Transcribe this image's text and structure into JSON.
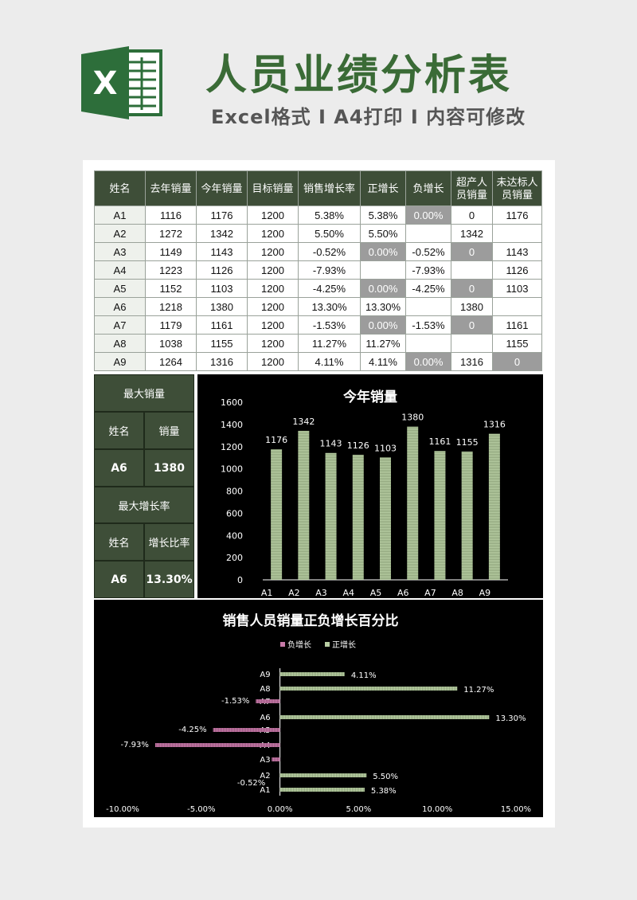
{
  "header": {
    "logo_letter": "X",
    "title": "人员业绩分析表",
    "subtitle": "Excel格式 I A4打印 I 内容可修改"
  },
  "table": {
    "headers": [
      "姓名",
      "去年销量",
      "今年销量",
      "目标销量",
      "销售增长率",
      "正增长",
      "负增长",
      "超产人员销量",
      "未达标人员销量"
    ],
    "rows": [
      {
        "name": "A1",
        "last": "1116",
        "this": "1176",
        "target": "1200",
        "rate": "5.38%",
        "pos": "5.38%",
        "neg": "0.00%",
        "over": "0",
        "under": "1176"
      },
      {
        "name": "A2",
        "last": "1272",
        "this": "1342",
        "target": "1200",
        "rate": "5.50%",
        "pos": "5.50%",
        "neg": "",
        "over": "1342",
        "under": ""
      },
      {
        "name": "A3",
        "last": "1149",
        "this": "1143",
        "target": "1200",
        "rate": "-0.52%",
        "pos": "0.00%",
        "neg": "-0.52%",
        "over": "0",
        "under": "1143"
      },
      {
        "name": "A4",
        "last": "1223",
        "this": "1126",
        "target": "1200",
        "rate": "-7.93%",
        "pos": "",
        "neg": "-7.93%",
        "over": "",
        "under": "1126"
      },
      {
        "name": "A5",
        "last": "1152",
        "this": "1103",
        "target": "1200",
        "rate": "-4.25%",
        "pos": "0.00%",
        "neg": "-4.25%",
        "over": "0",
        "under": "1103"
      },
      {
        "name": "A6",
        "last": "1218",
        "this": "1380",
        "target": "1200",
        "rate": "13.30%",
        "pos": "13.30%",
        "neg": "",
        "over": "1380",
        "under": ""
      },
      {
        "name": "A7",
        "last": "1179",
        "this": "1161",
        "target": "1200",
        "rate": "-1.53%",
        "pos": "0.00%",
        "neg": "-1.53%",
        "over": "0",
        "under": "1161"
      },
      {
        "name": "A8",
        "last": "1038",
        "this": "1155",
        "target": "1200",
        "rate": "11.27%",
        "pos": "11.27%",
        "neg": "",
        "over": "",
        "under": "1155"
      },
      {
        "name": "A9",
        "last": "1264",
        "this": "1316",
        "target": "1200",
        "rate": "4.11%",
        "pos": "4.11%",
        "neg": "0.00%",
        "over": "1316",
        "under": "0"
      }
    ],
    "gray_cells": {
      "A1": [
        "neg"
      ],
      "A3": [
        "pos",
        "over"
      ],
      "A5": [
        "pos",
        "over"
      ],
      "A7": [
        "pos",
        "over"
      ],
      "A9": [
        "neg",
        "under"
      ]
    }
  },
  "summary": {
    "max_sales_title": "最大销量",
    "name_label": "姓名",
    "sales_label": "销量",
    "max_sales_name": "A6",
    "max_sales_value": "1380",
    "max_growth_title": "最大增长率",
    "growth_label": "增长比率",
    "max_growth_name": "A6",
    "max_growth_value": "13.30%"
  },
  "chart_data": [
    {
      "type": "bar",
      "title": "今年销量",
      "categories": [
        "A1",
        "A2",
        "A3",
        "A4",
        "A5",
        "A6",
        "A7",
        "A8",
        "A9"
      ],
      "values": [
        1176,
        1342,
        1143,
        1126,
        1103,
        1380,
        1161,
        1155,
        1316
      ],
      "ylim": [
        0,
        1600
      ],
      "yticks": [
        0,
        200,
        400,
        600,
        800,
        1000,
        1200,
        1400,
        1600
      ],
      "bar_color": "#b9cfa4"
    },
    {
      "type": "bar",
      "orientation": "horizontal",
      "title": "销售人员销量正负增长百分比",
      "categories": [
        "A1",
        "A2",
        "A3",
        "A4",
        "A5",
        "A6",
        "A7",
        "A8",
        "A9"
      ],
      "series": [
        {
          "name": "负增长",
          "color": "#c77aa8",
          "values": [
            0,
            null,
            -0.52,
            -7.93,
            -4.25,
            null,
            -1.53,
            null,
            0
          ]
        },
        {
          "name": "正增长",
          "color": "#b9cfa4",
          "values": [
            5.38,
            5.5,
            0,
            null,
            0,
            13.3,
            0,
            11.27,
            4.11
          ]
        }
      ],
      "xlim": [
        -10,
        15
      ],
      "xticks": [
        "-10.00%",
        "-5.00%",
        "0.00%",
        "5.00%",
        "10.00%",
        "15.00%"
      ],
      "xtick_values": [
        -10,
        -5,
        0,
        5,
        10,
        15
      ],
      "labels_neg": [
        "-1.53%",
        "-4.25%",
        "-7.93%",
        "-0.52%"
      ],
      "labels_pos": [
        "4.11%",
        "11.27%",
        "13.30%",
        "5.50%",
        "5.38%"
      ],
      "legend_position": "top"
    }
  ]
}
